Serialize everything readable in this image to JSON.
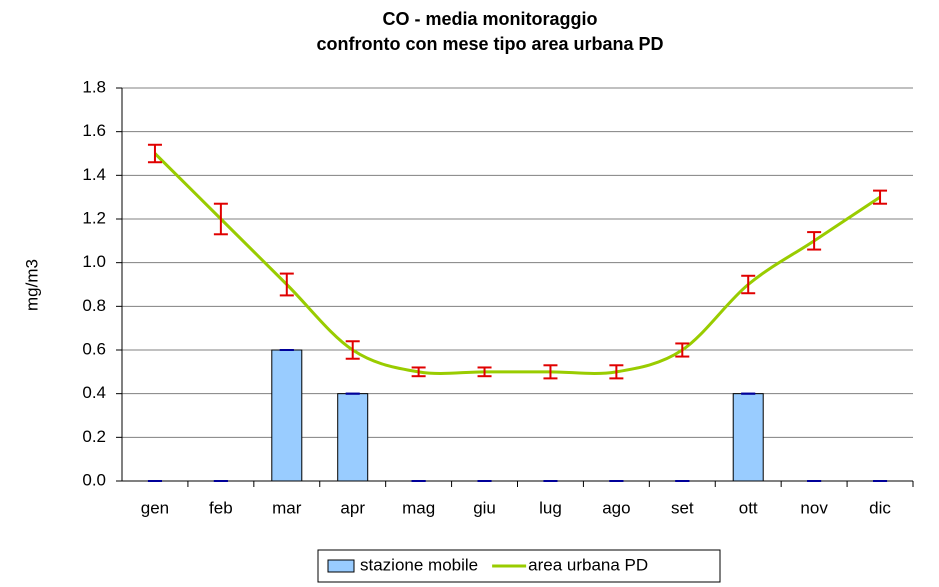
{
  "chart_data": {
    "type": "combo",
    "title": "CO - media monitoraggio",
    "subtitle": "confronto con mese tipo area urbana PD",
    "y_label": "mg/m3",
    "categories": [
      "gen",
      "feb",
      "mar",
      "apr",
      "mag",
      "giu",
      "lug",
      "ago",
      "set",
      "ott",
      "nov",
      "dic"
    ],
    "series": [
      {
        "name": "stazione mobile",
        "type": "bar",
        "color": "#99ccff",
        "error_color": "#000099",
        "values": [
          0,
          0,
          0.6,
          0.4,
          0,
          0,
          0,
          0,
          0,
          0.4,
          0,
          0
        ],
        "errors": [
          0,
          0,
          0,
          0,
          0,
          0,
          0,
          0,
          0,
          0,
          0,
          0
        ]
      },
      {
        "name": "area urbana PD",
        "type": "line",
        "color": "#99cc00",
        "error_color": "#e00000",
        "values": [
          1.5,
          1.2,
          0.9,
          0.6,
          0.5,
          0.5,
          0.5,
          0.5,
          0.6,
          0.9,
          1.1,
          1.3
        ],
        "errors": [
          0.04,
          0.07,
          0.05,
          0.04,
          0.02,
          0.02,
          0.03,
          0.03,
          0.03,
          0.04,
          0.04,
          0.03
        ]
      }
    ],
    "ylim": [
      0,
      1.8
    ],
    "yticks": [
      {
        "value": 0,
        "label": "0.0"
      },
      0.2,
      0.4,
      0.6,
      0.8,
      {
        "value": 1,
        "label": "1.0"
      },
      1.2,
      1.4,
      1.6,
      1.8
    ],
    "grid": true,
    "legend": "bottom"
  }
}
